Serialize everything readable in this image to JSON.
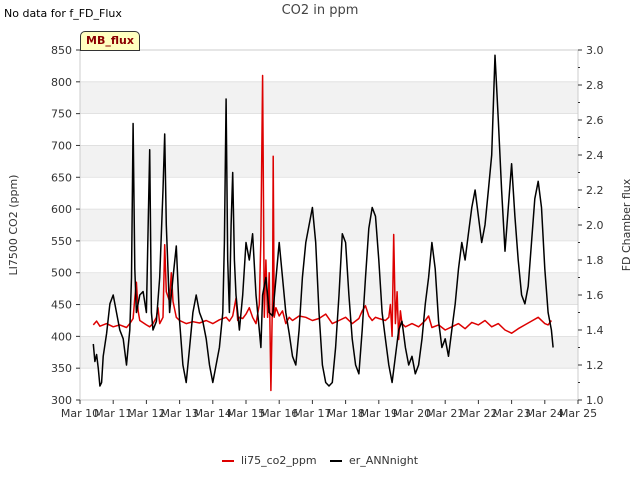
{
  "header": {
    "nodata_text": "No data for f_FD_Flux",
    "title": "CO2 in ppm",
    "badge": "MB_flux"
  },
  "chart_data": {
    "type": "line",
    "ylabel": "LI7500 CO2 (ppm)",
    "y2label": "FD Chamber flux",
    "ylim": [
      300,
      850
    ],
    "y2lim": [
      1.0,
      3.0
    ],
    "yticks": [
      300,
      350,
      400,
      450,
      500,
      550,
      600,
      650,
      700,
      750,
      800,
      850
    ],
    "y2ticks": [
      "1.0",
      "1.2",
      "1.4",
      "1.6",
      "1.8",
      "2.0",
      "2.2",
      "2.4",
      "2.6",
      "2.8",
      "3.0"
    ],
    "xlim": [
      10,
      25
    ],
    "xticks": [
      {
        "v": 10,
        "label": "Mar 10"
      },
      {
        "v": 11,
        "label": "Mar 11"
      },
      {
        "v": 12,
        "label": "Mar 12"
      },
      {
        "v": 13,
        "label": "Mar 13"
      },
      {
        "v": 14,
        "label": "Mar 14"
      },
      {
        "v": 15,
        "label": "Mar 15"
      },
      {
        "v": 16,
        "label": "Mar 16"
      },
      {
        "v": 17,
        "label": "Mar 17"
      },
      {
        "v": 18,
        "label": "Mar 18"
      },
      {
        "v": 19,
        "label": "Mar 19"
      },
      {
        "v": 20,
        "label": "Mar 20"
      },
      {
        "v": 21,
        "label": "Mar 21"
      },
      {
        "v": 22,
        "label": "Mar 22"
      },
      {
        "v": 23,
        "label": "Mar 23"
      },
      {
        "v": 24,
        "label": "Mar 24"
      },
      {
        "v": 25,
        "label": "Mar 25"
      }
    ],
    "grid": "horizontal bands",
    "legend": "bottom-center",
    "series": [
      {
        "name": "li75_co2_ppm",
        "axis": "left",
        "color": "#dd0000",
        "points": [
          [
            10.4,
            418
          ],
          [
            10.5,
            424
          ],
          [
            10.6,
            416
          ],
          [
            10.8,
            420
          ],
          [
            11.0,
            415
          ],
          [
            11.2,
            418
          ],
          [
            11.4,
            414
          ],
          [
            11.5,
            420
          ],
          [
            11.6,
            428
          ],
          [
            11.65,
            460
          ],
          [
            11.7,
            485
          ],
          [
            11.75,
            440
          ],
          [
            11.8,
            425
          ],
          [
            12.0,
            418
          ],
          [
            12.1,
            415
          ],
          [
            12.2,
            420
          ],
          [
            12.3,
            430
          ],
          [
            12.35,
            445
          ],
          [
            12.4,
            420
          ],
          [
            12.5,
            430
          ],
          [
            12.55,
            544
          ],
          [
            12.6,
            470
          ],
          [
            12.7,
            455
          ],
          [
            12.75,
            500
          ],
          [
            12.8,
            455
          ],
          [
            12.9,
            430
          ],
          [
            13.0,
            425
          ],
          [
            13.2,
            420
          ],
          [
            13.4,
            423
          ],
          [
            13.6,
            421
          ],
          [
            13.8,
            425
          ],
          [
            14.0,
            420
          ],
          [
            14.2,
            426
          ],
          [
            14.4,
            430
          ],
          [
            14.5,
            424
          ],
          [
            14.6,
            432
          ],
          [
            14.7,
            460
          ],
          [
            14.75,
            425
          ],
          [
            14.8,
            430
          ],
          [
            14.9,
            428
          ],
          [
            15.0,
            435
          ],
          [
            15.1,
            445
          ],
          [
            15.2,
            430
          ],
          [
            15.3,
            420
          ],
          [
            15.4,
            450
          ],
          [
            15.45,
            555
          ],
          [
            15.5,
            810
          ],
          [
            15.55,
            430
          ],
          [
            15.6,
            520
          ],
          [
            15.65,
            430
          ],
          [
            15.7,
            500
          ],
          [
            15.75,
            315
          ],
          [
            15.8,
            470
          ],
          [
            15.82,
            683
          ],
          [
            15.85,
            430
          ],
          [
            15.9,
            445
          ],
          [
            16.0,
            432
          ],
          [
            16.1,
            440
          ],
          [
            16.2,
            420
          ],
          [
            16.3,
            430
          ],
          [
            16.4,
            425
          ],
          [
            16.6,
            432
          ],
          [
            16.8,
            430
          ],
          [
            17.0,
            425
          ],
          [
            17.2,
            428
          ],
          [
            17.4,
            435
          ],
          [
            17.6,
            420
          ],
          [
            17.8,
            425
          ],
          [
            18.0,
            430
          ],
          [
            18.2,
            420
          ],
          [
            18.4,
            428
          ],
          [
            18.5,
            440
          ],
          [
            18.6,
            448
          ],
          [
            18.7,
            432
          ],
          [
            18.8,
            425
          ],
          [
            18.9,
            430
          ],
          [
            19.0,
            428
          ],
          [
            19.2,
            425
          ],
          [
            19.3,
            430
          ],
          [
            19.35,
            450
          ],
          [
            19.4,
            400
          ],
          [
            19.45,
            560
          ],
          [
            19.5,
            420
          ],
          [
            19.55,
            470
          ],
          [
            19.6,
            395
          ],
          [
            19.65,
            440
          ],
          [
            19.7,
            420
          ],
          [
            19.8,
            415
          ],
          [
            20.0,
            420
          ],
          [
            20.2,
            415
          ],
          [
            20.4,
            425
          ],
          [
            20.5,
            432
          ],
          [
            20.6,
            414
          ],
          [
            20.8,
            418
          ],
          [
            21.0,
            410
          ],
          [
            21.2,
            415
          ],
          [
            21.4,
            420
          ],
          [
            21.6,
            412
          ],
          [
            21.8,
            422
          ],
          [
            22.0,
            418
          ],
          [
            22.2,
            425
          ],
          [
            22.4,
            415
          ],
          [
            22.6,
            420
          ],
          [
            22.8,
            410
          ],
          [
            23.0,
            405
          ],
          [
            23.2,
            412
          ],
          [
            23.4,
            418
          ],
          [
            23.6,
            424
          ],
          [
            23.8,
            430
          ],
          [
            24.0,
            420
          ],
          [
            24.1,
            418
          ],
          [
            24.2,
            425
          ]
        ]
      },
      {
        "name": "er_ANNnight",
        "axis": "right",
        "color": "#000000",
        "points": [
          [
            10.4,
            1.32
          ],
          [
            10.45,
            1.22
          ],
          [
            10.5,
            1.26
          ],
          [
            10.55,
            1.18
          ],
          [
            10.6,
            1.08
          ],
          [
            10.65,
            1.1
          ],
          [
            10.7,
            1.25
          ],
          [
            10.8,
            1.38
          ],
          [
            10.9,
            1.55
          ],
          [
            11.0,
            1.6
          ],
          [
            11.1,
            1.5
          ],
          [
            11.2,
            1.4
          ],
          [
            11.3,
            1.35
          ],
          [
            11.4,
            1.2
          ],
          [
            11.45,
            1.3
          ],
          [
            11.5,
            1.4
          ],
          [
            11.55,
            1.7
          ],
          [
            11.6,
            2.58
          ],
          [
            11.65,
            1.75
          ],
          [
            11.7,
            1.5
          ],
          [
            11.8,
            1.6
          ],
          [
            11.9,
            1.62
          ],
          [
            12.0,
            1.5
          ],
          [
            12.1,
            2.43
          ],
          [
            12.15,
            1.5
          ],
          [
            12.2,
            1.4
          ],
          [
            12.3,
            1.45
          ],
          [
            12.4,
            1.7
          ],
          [
            12.5,
            2.2
          ],
          [
            12.55,
            2.52
          ],
          [
            12.6,
            2.0
          ],
          [
            12.7,
            1.5
          ],
          [
            12.8,
            1.7
          ],
          [
            12.9,
            1.88
          ],
          [
            13.0,
            1.45
          ],
          [
            13.1,
            1.2
          ],
          [
            13.2,
            1.1
          ],
          [
            13.3,
            1.3
          ],
          [
            13.4,
            1.5
          ],
          [
            13.5,
            1.6
          ],
          [
            13.6,
            1.5
          ],
          [
            13.7,
            1.45
          ],
          [
            13.8,
            1.35
          ],
          [
            13.9,
            1.2
          ],
          [
            14.0,
            1.1
          ],
          [
            14.1,
            1.2
          ],
          [
            14.2,
            1.3
          ],
          [
            14.3,
            1.5
          ],
          [
            14.35,
            1.9
          ],
          [
            14.4,
            2.72
          ],
          [
            14.45,
            1.8
          ],
          [
            14.5,
            1.5
          ],
          [
            14.55,
            2.0
          ],
          [
            14.6,
            2.3
          ],
          [
            14.65,
            1.8
          ],
          [
            14.7,
            1.6
          ],
          [
            14.8,
            1.4
          ],
          [
            14.9,
            1.6
          ],
          [
            15.0,
            1.9
          ],
          [
            15.1,
            1.8
          ],
          [
            15.2,
            1.95
          ],
          [
            15.3,
            1.6
          ],
          [
            15.4,
            1.4
          ],
          [
            15.45,
            1.3
          ],
          [
            15.5,
            1.6
          ],
          [
            15.6,
            1.7
          ],
          [
            15.7,
            1.5
          ],
          [
            15.8,
            1.48
          ],
          [
            16.0,
            1.9
          ],
          [
            16.1,
            1.7
          ],
          [
            16.2,
            1.5
          ],
          [
            16.3,
            1.38
          ],
          [
            16.4,
            1.25
          ],
          [
            16.5,
            1.2
          ],
          [
            16.6,
            1.4
          ],
          [
            16.7,
            1.7
          ],
          [
            16.8,
            1.9
          ],
          [
            16.9,
            2.0
          ],
          [
            17.0,
            2.1
          ],
          [
            17.1,
            1.9
          ],
          [
            17.2,
            1.5
          ],
          [
            17.3,
            1.2
          ],
          [
            17.4,
            1.1
          ],
          [
            17.5,
            1.08
          ],
          [
            17.6,
            1.1
          ],
          [
            17.7,
            1.3
          ],
          [
            17.8,
            1.6
          ],
          [
            17.9,
            1.95
          ],
          [
            18.0,
            1.9
          ],
          [
            18.1,
            1.6
          ],
          [
            18.2,
            1.35
          ],
          [
            18.3,
            1.2
          ],
          [
            18.4,
            1.15
          ],
          [
            18.5,
            1.4
          ],
          [
            18.6,
            1.7
          ],
          [
            18.7,
            1.98
          ],
          [
            18.8,
            2.1
          ],
          [
            18.9,
            2.05
          ],
          [
            19.0,
            1.8
          ],
          [
            19.1,
            1.5
          ],
          [
            19.2,
            1.35
          ],
          [
            19.3,
            1.2
          ],
          [
            19.4,
            1.1
          ],
          [
            19.5,
            1.25
          ],
          [
            19.6,
            1.4
          ],
          [
            19.7,
            1.45
          ],
          [
            19.8,
            1.3
          ],
          [
            19.9,
            1.2
          ],
          [
            20.0,
            1.25
          ],
          [
            20.1,
            1.15
          ],
          [
            20.2,
            1.2
          ],
          [
            20.3,
            1.35
          ],
          [
            20.4,
            1.55
          ],
          [
            20.5,
            1.7
          ],
          [
            20.6,
            1.9
          ],
          [
            20.7,
            1.75
          ],
          [
            20.8,
            1.45
          ],
          [
            20.9,
            1.3
          ],
          [
            21.0,
            1.35
          ],
          [
            21.1,
            1.25
          ],
          [
            21.2,
            1.4
          ],
          [
            21.3,
            1.55
          ],
          [
            21.4,
            1.75
          ],
          [
            21.5,
            1.9
          ],
          [
            21.6,
            1.8
          ],
          [
            21.7,
            1.95
          ],
          [
            21.8,
            2.1
          ],
          [
            21.9,
            2.2
          ],
          [
            22.0,
            2.05
          ],
          [
            22.1,
            1.9
          ],
          [
            22.2,
            2.0
          ],
          [
            22.3,
            2.2
          ],
          [
            22.4,
            2.4
          ],
          [
            22.5,
            2.97
          ],
          [
            22.6,
            2.6
          ],
          [
            22.7,
            2.2
          ],
          [
            22.8,
            1.85
          ],
          [
            22.9,
            2.1
          ],
          [
            23.0,
            2.35
          ],
          [
            23.1,
            2.05
          ],
          [
            23.2,
            1.8
          ],
          [
            23.3,
            1.6
          ],
          [
            23.4,
            1.55
          ],
          [
            23.5,
            1.65
          ],
          [
            23.6,
            1.9
          ],
          [
            23.7,
            2.15
          ],
          [
            23.8,
            2.25
          ],
          [
            23.9,
            2.1
          ],
          [
            24.0,
            1.75
          ],
          [
            24.1,
            1.5
          ],
          [
            24.2,
            1.4
          ],
          [
            24.25,
            1.3
          ]
        ]
      }
    ]
  }
}
